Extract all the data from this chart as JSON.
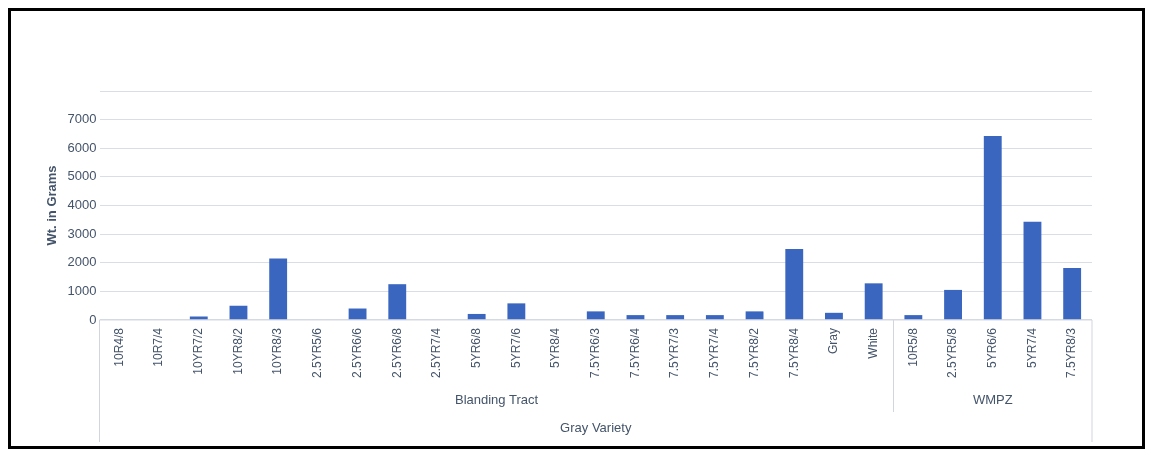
{
  "chart_data": {
    "type": "bar",
    "ylabel": "Wt. in Grams",
    "xlabel": "Gray Variety",
    "categories": [
      "10R4/8",
      "10R7/4",
      "10YR7/2",
      "10YR8/2",
      "10YR8/3",
      "2.5YR5/6",
      "2.5YR6/6",
      "2.5YR6/8",
      "2.5YR7/4",
      "5YR6/8",
      "5YR7/6",
      "5YR8/4",
      "7.5YR6/3",
      "7.5YR6/4",
      "7.5YR7/3",
      "7.5YR7/4",
      "7.5YR8/2",
      "7.5YR8/4",
      "Gray",
      "White",
      "10R5/8",
      "2.5YR5/8",
      "5YR6/6",
      "5YR7/4",
      "7.5YR8/3"
    ],
    "values": [
      null,
      20,
      120,
      500,
      2150,
      null,
      400,
      1250,
      null,
      210,
      580,
      null,
      300,
      170,
      170,
      170,
      300,
      2480,
      250,
      1280,
      170,
      1050,
      6430,
      3430,
      1820
    ],
    "color": "#3a66c0",
    "ylim": [
      0,
      8000
    ],
    "yticks": [
      0,
      1000,
      2000,
      3000,
      4000,
      5000,
      6000,
      7000,
      {
        "value": 8000,
        "label": null
      }
    ],
    "grid": "y",
    "legend": false,
    "annotations": [
      "Blanding Tract",
      "WMPZ"
    ]
  }
}
